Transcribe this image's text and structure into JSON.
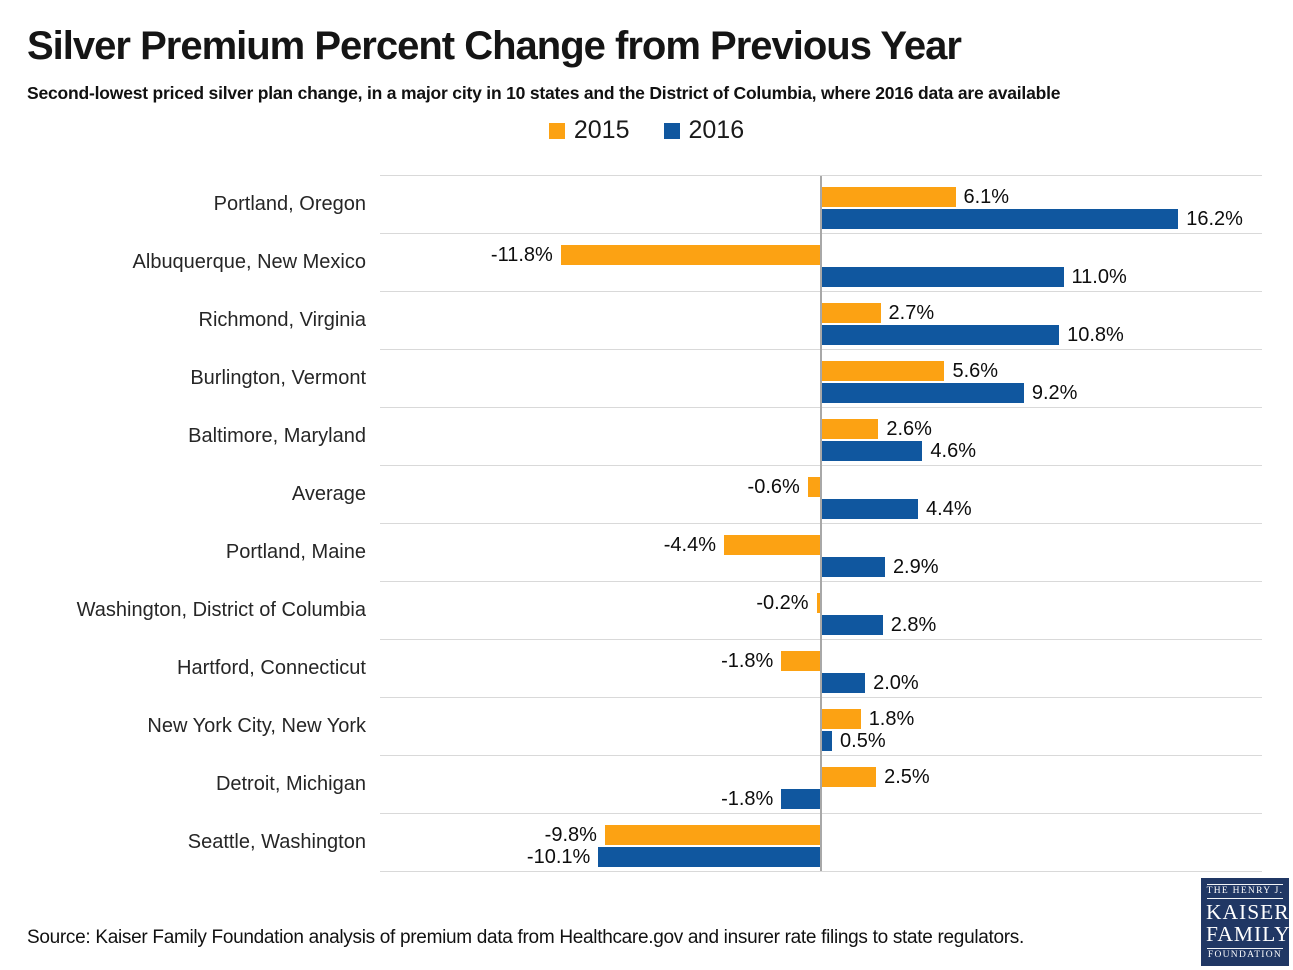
{
  "header": {
    "title": "Silver Premium Percent Change from Previous Year",
    "subtitle": "Second-lowest priced silver plan change, in a major city in 10 states and the District of Columbia, where 2016 data are available"
  },
  "legend": {
    "items": [
      {
        "label": "2015",
        "color": "#FCA213"
      },
      {
        "label": "2016",
        "color": "#10579F"
      }
    ]
  },
  "chart_data": {
    "type": "bar",
    "orientation": "horizontal",
    "title": "Silver Premium Percent Change from Previous Year",
    "subtitle": "Second-lowest priced silver plan change, in a major city in 10 states and the District of Columbia, where 2016 data are available",
    "categories": [
      "Portland, Oregon",
      "Albuquerque, New Mexico",
      "Richmond, Virginia",
      "Burlington, Vermont",
      "Baltimore, Maryland",
      "Average",
      "Portland, Maine",
      "Washington, District of Columbia",
      "Hartford, Connecticut",
      "New York City, New York",
      "Detroit, Michigan",
      "Seattle, Washington"
    ],
    "series": [
      {
        "name": "2015",
        "color": "#FCA213",
        "values": [
          6.1,
          -11.8,
          2.7,
          5.6,
          2.6,
          -0.6,
          -4.4,
          -0.2,
          -1.8,
          1.8,
          2.5,
          -9.8
        ]
      },
      {
        "name": "2016",
        "color": "#10579F",
        "values": [
          16.2,
          11.0,
          10.8,
          9.2,
          4.6,
          4.4,
          2.9,
          2.8,
          2.0,
          0.5,
          -1.8,
          -10.1
        ]
      }
    ],
    "value_suffix": "%",
    "value_decimals": 1,
    "xlim": [
      -20,
      20
    ],
    "zero_line": true,
    "grid": "horizontal-band-separators",
    "legend_position": "top-center"
  },
  "footer": {
    "source": "Source: Kaiser Family Foundation analysis of premium data from Healthcare.gov and insurer rate filings to state regulators.",
    "logo": {
      "line1": "THE HENRY J.",
      "line2": "KAISER",
      "line3": "FAMILY",
      "line4": "FOUNDATION"
    }
  },
  "colors": {
    "series_2015": "#FCA213",
    "series_2016": "#10579F",
    "axis_line": "#A8A8A8",
    "grid_line": "#D9D9D9",
    "logo_bg": "#203764",
    "text": "#1A1A1A"
  }
}
